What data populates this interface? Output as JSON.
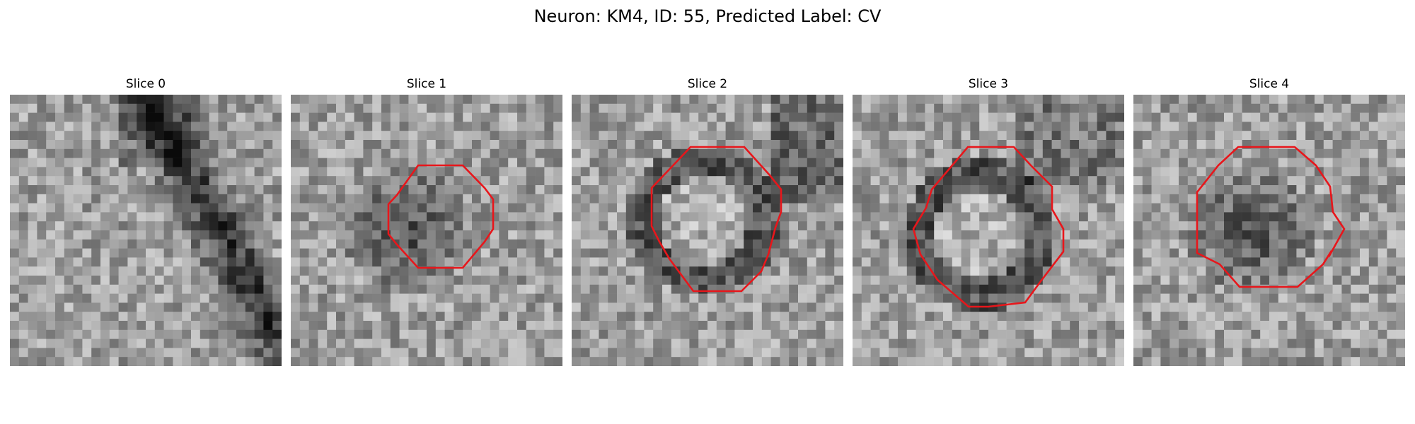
{
  "figure": {
    "title": "Neuron: KM4, ID: 55, Predicted Label: CV",
    "colormap": "grayscale",
    "contour_color": "#e8161b"
  },
  "panels": [
    {
      "title": "Slice 0",
      "has_contour": false
    },
    {
      "title": "Slice 1",
      "has_contour": true
    },
    {
      "title": "Slice 2",
      "has_contour": true
    },
    {
      "title": "Slice 3",
      "has_contour": true
    },
    {
      "title": "Slice 4",
      "has_contour": true
    }
  ]
}
